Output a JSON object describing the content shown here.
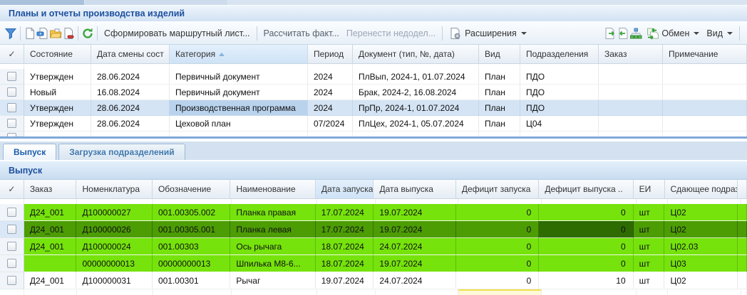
{
  "window": {
    "title": "Планы и отчеты производства изделий"
  },
  "toolbar": {
    "icons": [
      "filter-icon",
      "new-document-icon",
      "edit-document-icon",
      "open-folder-icon",
      "remove-document-icon",
      "refresh-icon",
      "extensions-icon",
      "export-icon",
      "import-icon",
      "orgchart-icon",
      "exchange-icon"
    ],
    "form_route_sheet": "Сформировать маршрутный лист...",
    "calc_fact": "Рассчитать факт...",
    "move_unfinished": "Перенести недодел...",
    "extensions": "Расширения",
    "exchange": "Обмен",
    "view": "Вид"
  },
  "plans_grid": {
    "columns": [
      {
        "key": "check",
        "label": "✓",
        "sorted": false
      },
      {
        "key": "state",
        "label": "Состояние",
        "sorted": false
      },
      {
        "key": "date",
        "label": "Дата смены сост",
        "sorted": false
      },
      {
        "key": "category",
        "label": "Категория",
        "sorted": true
      },
      {
        "key": "period",
        "label": "Период",
        "sorted": false
      },
      {
        "key": "document",
        "label": "Документ (тип, №, дата)",
        "sorted": false
      },
      {
        "key": "kind",
        "label": "Вид",
        "sorted": false
      },
      {
        "key": "department",
        "label": "Подразделения",
        "sorted": false
      },
      {
        "key": "order",
        "label": "Заказ",
        "sorted": false
      },
      {
        "key": "note",
        "label": "Примечание",
        "sorted": false
      }
    ],
    "rows": [
      {
        "state": "Утвержден",
        "date": "28.06.2024",
        "category": "Первичный документ",
        "period": "2024",
        "document": "ПлВып, 2024-1, 01.07.2024",
        "kind": "План",
        "department": "ПДО",
        "order": "",
        "note": "",
        "selected": false
      },
      {
        "state": "Новый",
        "date": "16.08.2024",
        "category": "Первичный документ",
        "period": "2024",
        "document": "Брак, 2024-2, 16.08.2024",
        "kind": "План",
        "department": "ПДО",
        "order": "",
        "note": "",
        "selected": false
      },
      {
        "state": "Утвержден",
        "date": "28.06.2024",
        "category": "Производственная программа",
        "period": "2024",
        "document": "ПрПр, 2024-1, 01.07.2024",
        "kind": "План",
        "department": "ПДО",
        "order": "",
        "note": "",
        "selected": true,
        "focused_cell": "category"
      },
      {
        "state": "Утвержден",
        "date": "28.06.2024",
        "category": "Цеховой план",
        "period": "07/2024",
        "document": "ПлЦех, 2024-1, 05.07.2024",
        "kind": "План",
        "department": "Ц04",
        "order": "",
        "note": "",
        "selected": false
      }
    ]
  },
  "tabs": [
    {
      "label": "Выпуск",
      "active": true
    },
    {
      "label": "Загрузка подразделений",
      "active": false
    }
  ],
  "output_panel": {
    "title": "Выпуск"
  },
  "output_grid": {
    "columns": [
      {
        "key": "check",
        "label": "✓",
        "sorted": false
      },
      {
        "key": "order",
        "label": "Заказ",
        "sorted": false
      },
      {
        "key": "nomenclature",
        "label": "Номенклатура",
        "sorted": false
      },
      {
        "key": "designation",
        "label": "Обозначение",
        "sorted": false
      },
      {
        "key": "name",
        "label": "Наименование",
        "sorted": false
      },
      {
        "key": "launch_date",
        "label": "Дата запуска",
        "sorted": true
      },
      {
        "key": "release_date",
        "label": "Дата выпуска",
        "sorted": false
      },
      {
        "key": "launch_deficit",
        "label": "Дефицит запуска",
        "sorted": false
      },
      {
        "key": "release_deficit",
        "label": "Дефицит выпуска ..",
        "sorted": false
      },
      {
        "key": "unit",
        "label": "ЕИ",
        "sorted": false
      },
      {
        "key": "department",
        "label": "Сдающее подраз",
        "sorted": false
      },
      {
        "key": "_end",
        "label": "",
        "sorted": false
      }
    ],
    "rows": [
      {
        "order": "Д24_001",
        "nomenclature": "Д100000027",
        "designation": "001.00305.002",
        "name": "Планка правая",
        "launch_date": "17.07.2024",
        "release_date": "19.07.2024",
        "launch_deficit": "0",
        "release_deficit": "0",
        "unit": "шт",
        "department": "Ц02",
        "_end": "",
        "highlight": "green"
      },
      {
        "order": "Д24_001",
        "nomenclature": "Д100000026",
        "designation": "001.00305.001",
        "name": "Планка левая",
        "launch_date": "17.07.2024",
        "release_date": "19.07.2024",
        "launch_deficit": "0",
        "release_deficit": "0",
        "unit": "шт",
        "department": "Ц02",
        "_end": "",
        "highlight": "dark-green",
        "focused_cell": "release_deficit"
      },
      {
        "order": "Д24_001",
        "nomenclature": "Д100000024",
        "designation": "001.00303",
        "name": "Ось рычага",
        "launch_date": "18.07.2024",
        "release_date": "24.07.2024",
        "launch_deficit": "0",
        "release_deficit": "0",
        "unit": "шт",
        "department": "Ц02.03",
        "_end": "",
        "highlight": "green"
      },
      {
        "order": "",
        "nomenclature": "00000000013",
        "designation": "00000000013",
        "name": "Шпилька М8-6...",
        "launch_date": "18.07.2024",
        "release_date": "19.07.2024",
        "launch_deficit": "0",
        "release_deficit": "0",
        "unit": "шт",
        "department": "Ц03",
        "_end": "",
        "highlight": "green"
      },
      {
        "order": "Д24_001",
        "nomenclature": "Д100000031",
        "designation": "001.00301",
        "name": "Рычаг",
        "launch_date": "19.07.2024",
        "release_date": "24.07.2024",
        "launch_deficit": "0",
        "release_deficit": "10",
        "unit": "шт",
        "department": "Ц02",
        "_end": "",
        "highlight": "none"
      }
    ],
    "partial_next_row": {
      "highlight_cell": "launch_deficit",
      "color": "#f1e04a"
    }
  },
  "colors": {
    "row_green": "#76e30c",
    "row_green_selected": "#4c9c04",
    "cell_green_focused": "#2e6b00",
    "row_selected_blue": "#d4e4f5",
    "accent_title": "#1c4f9e",
    "pending_yellow": "#f1e04a"
  }
}
